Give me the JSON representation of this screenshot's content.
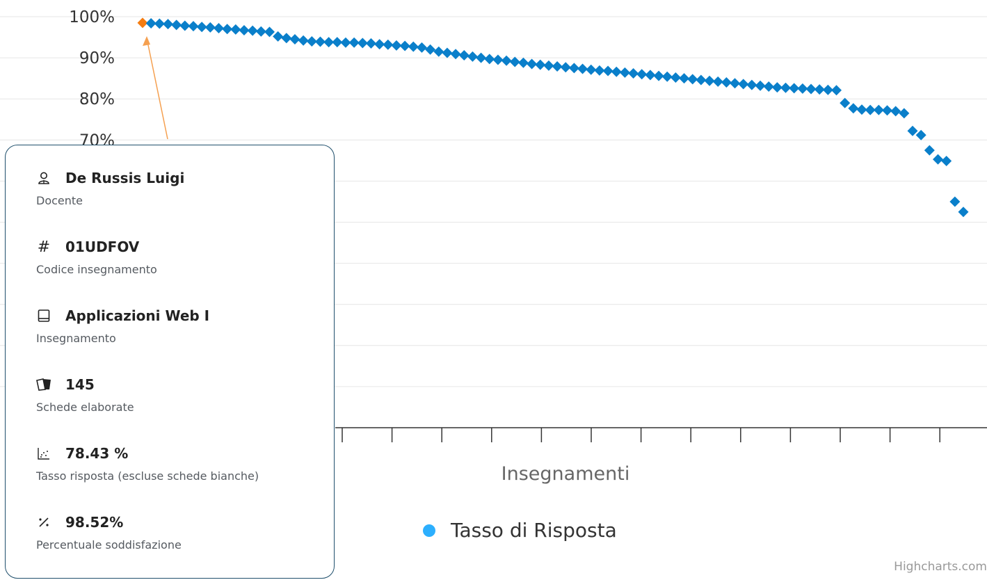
{
  "chart_data": {
    "type": "scatter",
    "xlabel": "Insegnamenti",
    "yticks": [
      "100%",
      "90%",
      "80%",
      "70%"
    ],
    "ylim": [
      0,
      100
    ],
    "grid": true,
    "legend_position": "bottom-center",
    "series": [
      {
        "name": "Tasso di Risposta",
        "color": "#0a7fca",
        "legend_color": "#2caffe",
        "values": [
          98.5,
          98.4,
          98.3,
          98.2,
          98.0,
          97.8,
          97.7,
          97.5,
          97.4,
          97.2,
          97.0,
          96.9,
          96.7,
          96.6,
          96.4,
          96.3,
          95.2,
          94.8,
          94.5,
          94.2,
          94.0,
          93.9,
          93.8,
          93.8,
          93.7,
          93.7,
          93.6,
          93.5,
          93.3,
          93.2,
          93.0,
          92.9,
          92.7,
          92.5,
          92.0,
          91.5,
          91.2,
          90.9,
          90.6,
          90.3,
          90.0,
          89.7,
          89.5,
          89.3,
          89.0,
          88.8,
          88.5,
          88.3,
          88.1,
          87.9,
          87.7,
          87.5,
          87.3,
          87.1,
          86.9,
          86.8,
          86.6,
          86.4,
          86.2,
          86.0,
          85.8,
          85.6,
          85.4,
          85.2,
          85.0,
          84.8,
          84.6,
          84.4,
          84.2,
          84.0,
          83.8,
          83.6,
          83.4,
          83.2,
          83.0,
          82.8,
          82.7,
          82.6,
          82.5,
          82.4,
          82.3,
          82.2,
          82.1,
          79.0,
          77.7,
          77.4,
          77.3,
          77.3,
          77.2,
          77.0,
          76.5,
          72.2,
          71.2,
          67.5,
          65.3,
          64.9,
          55.0,
          52.5
        ],
        "highlight_index": 0,
        "highlight_color": "#f57c10"
      }
    ]
  },
  "tooltip": {
    "items": [
      {
        "icon": "user-icon",
        "value": "De Russis Luigi",
        "label": "Docente"
      },
      {
        "icon": "hash-icon",
        "value": "01UDFOV",
        "label": "Codice insegnamento"
      },
      {
        "icon": "book-icon",
        "value": "Applicazioni Web I",
        "label": "Insegnamento"
      },
      {
        "icon": "forms-icon",
        "value": "145",
        "label": "Schede elaborate"
      },
      {
        "icon": "scatter-icon",
        "value": "78.43 %",
        "label": "Tasso risposta (escluse schede bianche)"
      },
      {
        "icon": "percent-icon",
        "value": "98.52%",
        "label": "Percentuale soddisfazione"
      }
    ]
  },
  "credits": "Highcharts.com"
}
